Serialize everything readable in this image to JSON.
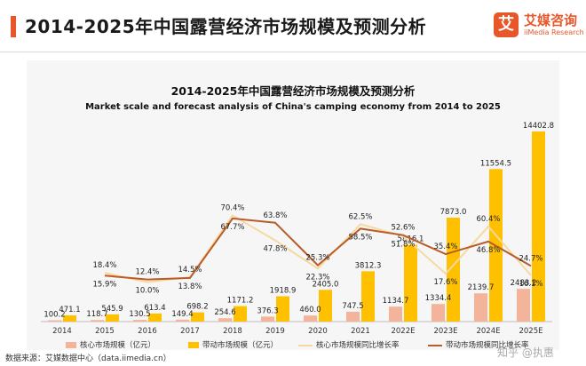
{
  "page_title": "2014-2025年中国露营经济市场规模及预测分析",
  "logo": {
    "cn": "艾媒咨询",
    "en": "iiMedia Research",
    "mark": "艾"
  },
  "colors": {
    "accent": "#e8572a",
    "core_bar": "#f4b49a",
    "driven_bar": "#ffc000",
    "core_line": "#f7d9a0",
    "driven_line": "#b85c2a"
  },
  "source": "数据来源：艾媒数据中心（data.iimedia.cn）",
  "watermark": "知乎 @执惠",
  "chart_data": {
    "type": "bar",
    "title": "2014-2025年中国露营经济市场规模及预测分析",
    "subtitle": "Market scale and forecast analysis of China's camping economy from 2014 to 2025",
    "categories": [
      "2014",
      "2015",
      "2016",
      "2017",
      "2018",
      "2019",
      "2020",
      "2021",
      "2022E",
      "2023E",
      "2024E",
      "2025E"
    ],
    "series": [
      {
        "name": "核心市场规模（亿元）",
        "kind": "bar",
        "color": "#f4b49a",
        "values": [
          100.2,
          118.7,
          130.5,
          149.4,
          254.6,
          376.3,
          460.0,
          747.5,
          1134.7,
          1334.4,
          2139.7,
          2483.2
        ]
      },
      {
        "name": "带动市场规模（亿元）",
        "kind": "bar",
        "color": "#ffc000",
        "values": [
          471.1,
          545.9,
          613.4,
          698.2,
          1171.2,
          1918.9,
          2405.0,
          3812.3,
          5816.1,
          7873.0,
          11554.5,
          14402.8
        ]
      },
      {
        "name": "核心市场规模同比增长率",
        "kind": "line",
        "color": "#f7d9a0",
        "values": [
          null,
          18.4,
          10.0,
          14.5,
          70.4,
          47.8,
          22.3,
          62.5,
          51.8,
          17.6,
          60.4,
          16.1
        ]
      },
      {
        "name": "带动市场规模同比增长率",
        "kind": "line",
        "color": "#b85c2a",
        "values": [
          null,
          15.9,
          12.4,
          13.8,
          67.7,
          63.8,
          25.3,
          58.5,
          52.6,
          35.4,
          46.8,
          24.7
        ]
      }
    ],
    "value_labels": {
      "core": [
        "100.2",
        "118.7",
        "130.5",
        "149.4",
        "254.6",
        "376.3",
        "460.0",
        "747.5",
        "1134.7",
        "1334.4",
        "2139.7",
        "2483.2"
      ],
      "driven": [
        "471.1",
        "545.9",
        "613.4",
        "698.2",
        "1171.2",
        "1918.9",
        "2405.0",
        "3812.3",
        "5816.1",
        "7873.0",
        "11554.5",
        "14402.8"
      ],
      "core_rate": [
        "",
        "18.4%",
        "10.0%",
        "14.5%",
        "70.4%",
        "47.8%",
        "22.3%",
        "62.5%",
        "51.8%",
        "17.6%",
        "60.4%",
        "16.1%"
      ],
      "driven_rate": [
        "",
        "15.9%",
        "12.4%",
        "13.8%",
        "67.7%",
        "63.8%",
        "25.3%",
        "58.5%",
        "52.6%",
        "35.4%",
        "46.8%",
        "24.7%"
      ]
    },
    "ylim": [
      0,
      14402.8
    ],
    "rate_ylim": [
      0,
      100
    ],
    "grid": false,
    "legend_position": "bottom"
  }
}
